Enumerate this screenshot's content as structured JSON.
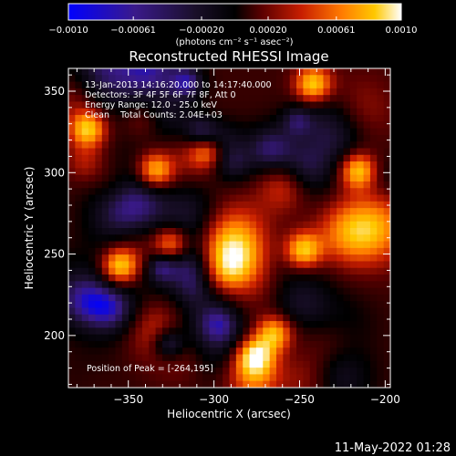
{
  "chart_data": {
    "type": "heatmap",
    "title": "Reconstructed RHESSI Image",
    "xlabel": "Heliocentric X (arcsec)",
    "ylabel": "Heliocentric Y (arcsec)",
    "xlim": [
      -385,
      -197
    ],
    "ylim": [
      168,
      364
    ],
    "x_ticks": [
      -350,
      -300,
      -250,
      -200
    ],
    "y_ticks": [
      200,
      250,
      300,
      350
    ],
    "colorbar": {
      "range": [
        -0.001,
        0.001
      ],
      "tick_values": [
        -0.001,
        -0.00061,
        -0.0002,
        0.0002,
        0.00061,
        0.001
      ],
      "tick_labels": [
        "-0.0010",
        "-0.00061",
        "-0.00020",
        "0.00020",
        "0.00061",
        "0.0010"
      ],
      "units": "(photons cm⁻² s⁻¹ asec⁻²)",
      "colors": [
        "#0000ff",
        "#3a1a8a",
        "#1a0f2a",
        "#000000",
        "#5a0000",
        "#c81e00",
        "#ff7a00",
        "#ffc800",
        "#ffffff"
      ]
    },
    "annotations": [
      "13-Jan-2013 14:16:20.000 to 14:17:40.000",
      "Detectors: 3F 4F 5F 6F 7F 8F, Att 0",
      "Energy Range: 12.0 - 25.0 keV",
      "Clean    Total Counts: 2.04E+03"
    ],
    "peak_label": "Position of Peak = [-264,195]",
    "peak_position": [
      -264,
      195
    ],
    "grid": false
  },
  "timestamp": "11-May-2022 01:28"
}
